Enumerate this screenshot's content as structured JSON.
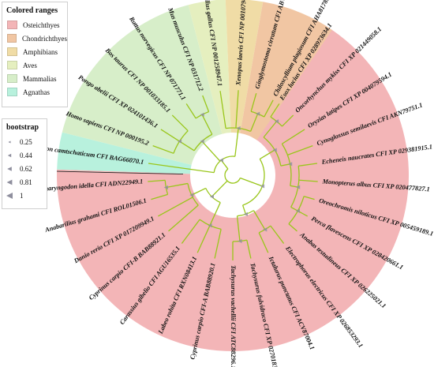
{
  "colors": {
    "osteichthyes": "#f3b5b7",
    "chondrichthyes": "#f1c6a3",
    "amphibians": "#f0dca6",
    "aves": "#e5efbf",
    "mammalias": "#d7eec9",
    "agnathas": "#b8f1dd",
    "branch": "#99c61a",
    "bootstrap": "#8f8f9e"
  },
  "legend": {
    "ranges_title": "Colored ranges",
    "ranges": [
      {
        "label": "Osteichthyes",
        "color": "#f3b5b7"
      },
      {
        "label": "Chondrichthyes",
        "color": "#f1c6a3"
      },
      {
        "label": "Amphibians",
        "color": "#f0dca6"
      },
      {
        "label": "Aves",
        "color": "#e5efbf"
      },
      {
        "label": "Mammalias",
        "color": "#d7eec9"
      },
      {
        "label": "Agnathas",
        "color": "#b8f1dd"
      }
    ],
    "bootstrap_title": "bootstrap",
    "bootstrap": [
      "0.25",
      "0.44",
      "0.62",
      "0.81",
      "1"
    ]
  },
  "tree": {
    "leaves": [
      {
        "label": "Esox lucius CFI XP 028973634.1",
        "group": "osteichthyes"
      },
      {
        "label": "Oncorhynchus mykiss CFI XP 021449058.1",
        "group": "osteichthyes"
      },
      {
        "label": "Oryzias latipes CFI XP 004079594.1",
        "group": "osteichthyes"
      },
      {
        "label": "Cynoglossus semilaevis CFI AKN79751.1",
        "group": "osteichthyes"
      },
      {
        "label": "Echeneis naucrates CFI XP 029381915.1",
        "group": "osteichthyes"
      },
      {
        "label": "Monopterus albus CFI XP 020477827.1",
        "group": "osteichthyes"
      },
      {
        "label": "Oreochromis niloticus CFI XP 005459189.1",
        "group": "osteichthyes"
      },
      {
        "label": "Perca flavescens CFI XP 028420661.1",
        "group": "osteichthyes"
      },
      {
        "label": "Anabas testudineus CFI XP 026225021.1",
        "group": "osteichthyes"
      },
      {
        "label": "Electrophorus electricus CFI XP 026853293.1",
        "group": "osteichthyes"
      },
      {
        "label": "Ictalurus punctatus CFI ACV87004.1",
        "group": "osteichthyes"
      },
      {
        "label": "Tachysurus fulvidraco CFI XP 027018314.1",
        "group": "osteichthyes"
      },
      {
        "label": "Tachysurus vachellii CFI ATC88296.1",
        "group": "osteichthyes"
      },
      {
        "label": "Cyprinus carpio CFI-A BAB88920.1",
        "group": "osteichthyes"
      },
      {
        "label": "Labeo rohita CFI RXN08413.1",
        "group": "osteichthyes"
      },
      {
        "label": "Carassius gibelio CFI AGU16535.1",
        "group": "osteichthyes"
      },
      {
        "label": "Cyprinus carpio CFI-B BAB88921.1",
        "group": "osteichthyes"
      },
      {
        "label": "Danio rerio CFI XP 017209949.1",
        "group": "osteichthyes"
      },
      {
        "label": "Anabarilius grahami CFI ROL01506.1",
        "group": "osteichthyes"
      },
      {
        "label": "Ctenopharyngodon idella CFI ADN22949.1",
        "group": "osteichthyes"
      },
      {
        "label": "Lethenteron camtschaticum CFI BAG66070.1",
        "group": "agnathas"
      },
      {
        "label": "Homo sapiens CFI NP 000195.2",
        "group": "mammalias"
      },
      {
        "label": "Pongo abelii CFI XP 024101436.1",
        "group": "mammalias"
      },
      {
        "label": "Bos taurus CFI NP 001033185.1",
        "group": "mammalias"
      },
      {
        "label": "Rattus norvegicus CFI NP 071771.1",
        "group": "mammalias"
      },
      {
        "label": "Mus musculus CFI NP 031712.2",
        "group": "mammalias"
      },
      {
        "label": "Gallus gallus CFI NP 001258947.1",
        "group": "aves"
      },
      {
        "label": "Xenopus laevis CFI NP 001079421.1",
        "group": "amphibians"
      },
      {
        "label": "Ginglymostoma cirratum CFI ABV21980.1",
        "group": "chondrichthyes"
      },
      {
        "label": "Chiloscyllium plagiosum CFI AHA81785.1",
        "group": "chondrichthyes"
      }
    ]
  }
}
